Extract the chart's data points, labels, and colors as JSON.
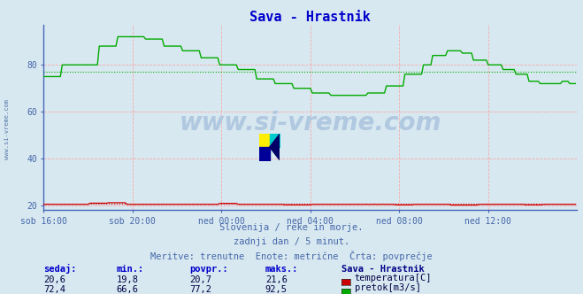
{
  "title": "Sava - Hrastnik",
  "title_color": "#0000cc",
  "bg_color": "#d8e8f0",
  "plot_bg_color": "#d8e8f0",
  "grid_color": "#ff9999",
  "xlabel_ticks": [
    "sob 16:00",
    "sob 20:00",
    "ned 00:00",
    "ned 04:00",
    "ned 08:00",
    "ned 12:00"
  ],
  "xlim": [
    0,
    288
  ],
  "ylim": [
    18,
    97
  ],
  "yticks": [
    20,
    40,
    60,
    80
  ],
  "temp_color": "#cc0000",
  "flow_color": "#00aa00",
  "avg_temp": 20.7,
  "avg_flow": 77.2,
  "watermark_text": "www.si-vreme.com",
  "watermark_color": "#b0c8e0",
  "sub_text1": "Slovenija / reke in morje.",
  "sub_text2": "zadnji dan / 5 minut.",
  "sub_text3": "Meritve: trenutne  Enote: metrične  Črta: povprečje",
  "sub_text_color": "#4466aa",
  "legend_title": "Sava - Hrastnik",
  "legend_title_color": "#000088",
  "legend_items": [
    "temperatura[C]",
    "pretok[m3/s]"
  ],
  "legend_colors": [
    "#cc0000",
    "#00aa00"
  ],
  "table_headers": [
    "sedaj:",
    "min.:",
    "povpr.:",
    "maks.:"
  ],
  "table_header_color": "#0000cc",
  "table_values_temp": [
    "20,6",
    "19,8",
    "20,7",
    "21,6"
  ],
  "table_values_flow": [
    "72,4",
    "66,6",
    "77,2",
    "92,5"
  ],
  "table_value_color": "#000044",
  "left_label_color": "#5577aa",
  "left_label_text": "www.si-vreme.com",
  "tick_label_color": "#4466aa",
  "spine_color": "#4466bb",
  "xtick_positions": [
    0,
    48,
    96,
    144,
    192,
    240
  ]
}
